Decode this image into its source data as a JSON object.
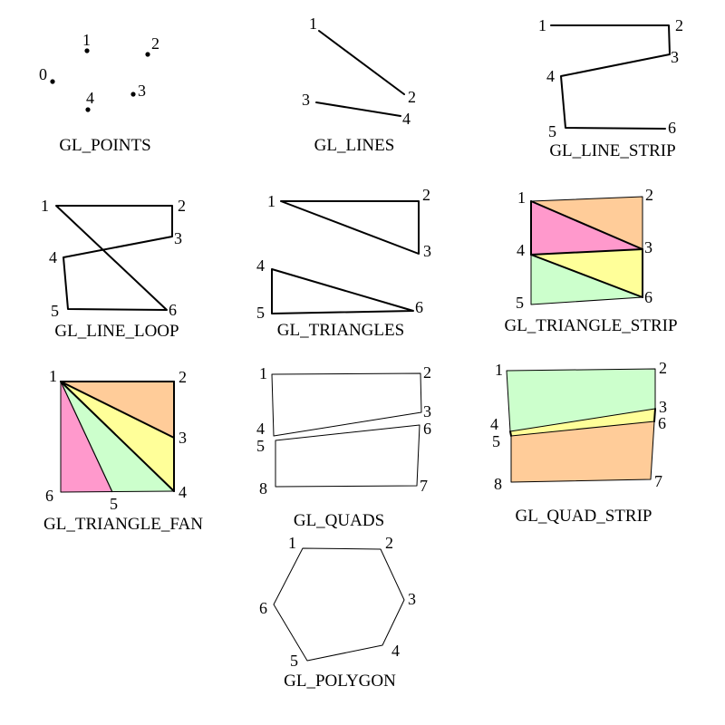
{
  "colors": {
    "orange": "#ffcc99",
    "pink": "#ff99cc",
    "yellow": "#ffff99",
    "green": "#ccffcc",
    "stroke": "#000000"
  },
  "diagrams": [
    {
      "id": "points",
      "caption": "GL_POINTS",
      "vertices": [
        {
          "label": "0"
        },
        {
          "label": "1"
        },
        {
          "label": "2"
        },
        {
          "label": "3"
        },
        {
          "label": "4"
        }
      ]
    },
    {
      "id": "lines",
      "caption": "GL_LINES",
      "vertices": [
        {
          "label": "1"
        },
        {
          "label": "2"
        },
        {
          "label": "3"
        },
        {
          "label": "4"
        }
      ]
    },
    {
      "id": "line-strip",
      "caption": "GL_LINE_STRIP",
      "vertices": [
        {
          "label": "1"
        },
        {
          "label": "2"
        },
        {
          "label": "3"
        },
        {
          "label": "4"
        },
        {
          "label": "5"
        },
        {
          "label": "6"
        }
      ]
    },
    {
      "id": "line-loop",
      "caption": "GL_LINE_LOOP",
      "vertices": [
        {
          "label": "1"
        },
        {
          "label": "2"
        },
        {
          "label": "3"
        },
        {
          "label": "4"
        },
        {
          "label": "5"
        },
        {
          "label": "6"
        }
      ]
    },
    {
      "id": "triangles",
      "caption": "GL_TRIANGLES",
      "vertices": [
        {
          "label": "1"
        },
        {
          "label": "2"
        },
        {
          "label": "3"
        },
        {
          "label": "4"
        },
        {
          "label": "5"
        },
        {
          "label": "6"
        }
      ]
    },
    {
      "id": "triangle-strip",
      "caption": "GL_TRIANGLE_STRIP",
      "vertices": [
        {
          "label": "1"
        },
        {
          "label": "2"
        },
        {
          "label": "3"
        },
        {
          "label": "4"
        },
        {
          "label": "5"
        },
        {
          "label": "6"
        }
      ],
      "fills": [
        "orange",
        "pink",
        "yellow",
        "green"
      ]
    },
    {
      "id": "triangle-fan",
      "caption": "GL_TRIANGLE_FAN",
      "vertices": [
        {
          "label": "1"
        },
        {
          "label": "2"
        },
        {
          "label": "3"
        },
        {
          "label": "4"
        },
        {
          "label": "5"
        },
        {
          "label": "6"
        }
      ],
      "fills": [
        "orange",
        "yellow",
        "green",
        "pink"
      ]
    },
    {
      "id": "quads",
      "caption": "GL_QUADS",
      "vertices": [
        {
          "label": "1"
        },
        {
          "label": "2"
        },
        {
          "label": "3"
        },
        {
          "label": "4"
        },
        {
          "label": "5"
        },
        {
          "label": "6"
        },
        {
          "label": "7"
        },
        {
          "label": "8"
        }
      ]
    },
    {
      "id": "quad-strip",
      "caption": "GL_QUAD_STRIP",
      "vertices": [
        {
          "label": "1"
        },
        {
          "label": "2"
        },
        {
          "label": "3"
        },
        {
          "label": "4"
        },
        {
          "label": "5"
        },
        {
          "label": "6"
        },
        {
          "label": "7"
        },
        {
          "label": "8"
        }
      ],
      "fills": [
        "green",
        "yellow",
        "orange"
      ]
    },
    {
      "id": "polygon",
      "caption": "GL_POLYGON",
      "vertices": [
        {
          "label": "1"
        },
        {
          "label": "2"
        },
        {
          "label": "3"
        },
        {
          "label": "4"
        },
        {
          "label": "5"
        },
        {
          "label": "6"
        }
      ]
    }
  ]
}
